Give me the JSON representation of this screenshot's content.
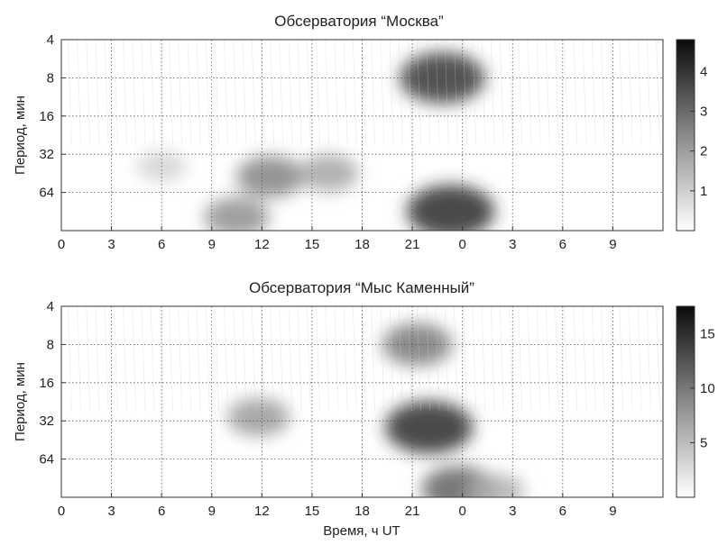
{
  "chart_data": [
    {
      "type": "heatmap",
      "title": "Обсерватория “Москва”",
      "xlabel": "",
      "ylabel": "Период, мин",
      "y_scale": "log2",
      "y_inverted": true,
      "ylim": [
        4,
        128
      ],
      "x_ticks": [
        "0",
        "3",
        "6",
        "9",
        "12",
        "15",
        "18",
        "21",
        "0",
        "3",
        "6",
        "9"
      ],
      "y_ticks": [
        "4",
        "8",
        "16",
        "32",
        "64"
      ],
      "grid": true,
      "colormap": "gray (white = low, black = high)",
      "colorbar_ticks": [
        "1",
        "2",
        "3",
        "4"
      ],
      "colorbar_range": [
        0,
        4.8
      ],
      "features": [
        {
          "x_hour": 12.5,
          "period": 48,
          "strength": 0.55
        },
        {
          "x_hour": 10.5,
          "period": 100,
          "strength": 0.5
        },
        {
          "x_hour": 16,
          "period": 45,
          "strength": 0.4
        },
        {
          "x_hour": 22.8,
          "period": 8,
          "strength": 0.9
        },
        {
          "x_hour": 23.3,
          "period": 90,
          "strength": 0.95
        },
        {
          "x_hour": 6,
          "period": 40,
          "strength": 0.2
        }
      ]
    },
    {
      "type": "heatmap",
      "title": "Обсерватория “Мыс Каменный”",
      "xlabel": "Время, ч UT",
      "ylabel": "Период, мин",
      "y_scale": "log2",
      "y_inverted": true,
      "ylim": [
        4,
        128
      ],
      "x_ticks": [
        "0",
        "3",
        "6",
        "9",
        "12",
        "15",
        "18",
        "21",
        "0",
        "3",
        "6",
        "9"
      ],
      "y_ticks": [
        "4",
        "8",
        "16",
        "32",
        "64"
      ],
      "grid": true,
      "colormap": "gray (white = low, black = high)",
      "colorbar_ticks": [
        "5",
        "10",
        "15"
      ],
      "colorbar_range": [
        0,
        17.5
      ],
      "features": [
        {
          "x_hour": 11.8,
          "period": 30,
          "strength": 0.45
        },
        {
          "x_hour": 22,
          "period": 36,
          "strength": 0.95
        },
        {
          "x_hour": 21.3,
          "period": 8,
          "strength": 0.6
        },
        {
          "x_hour": 23.8,
          "period": 110,
          "strength": 0.7
        },
        {
          "x_hour": 26,
          "period": 115,
          "strength": 0.35
        }
      ]
    }
  ]
}
